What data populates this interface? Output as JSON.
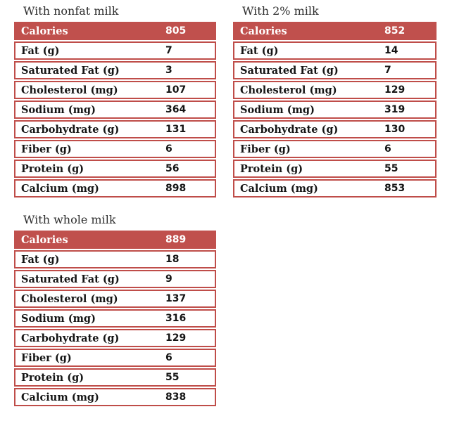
{
  "colors": {
    "accent_red": "#c0504d",
    "border_red": "#bf4d49",
    "header_text": "#ffffff",
    "body_text": "#151515",
    "title_text": "#2e2e2e",
    "background": "#ffffff"
  },
  "tables": [
    {
      "title": "With nonfat milk",
      "header": {
        "label": "Calories",
        "value": "805"
      },
      "rows": [
        {
          "label": "Fat (g)",
          "value": "7"
        },
        {
          "label": "Saturated Fat (g)",
          "value": "3"
        },
        {
          "label": "Cholesterol (mg)",
          "value": "107"
        },
        {
          "label": "Sodium (mg)",
          "value": "364"
        },
        {
          "label": "Carbohydrate (g)",
          "value": "131"
        },
        {
          "label": "Fiber (g)",
          "value": "6"
        },
        {
          "label": "Protein (g)",
          "value": "56"
        },
        {
          "label": "Calcium (mg)",
          "value": "898"
        }
      ]
    },
    {
      "title": "With 2% milk",
      "header": {
        "label": "Calories",
        "value": "852"
      },
      "rows": [
        {
          "label": "Fat (g)",
          "value": "14"
        },
        {
          "label": "Saturated Fat (g)",
          "value": "7"
        },
        {
          "label": "Cholesterol (mg)",
          "value": "129"
        },
        {
          "label": "Sodium (mg)",
          "value": "319"
        },
        {
          "label": "Carbohydrate (g)",
          "value": "130"
        },
        {
          "label": "Fiber (g)",
          "value": "6"
        },
        {
          "label": "Protein (g)",
          "value": "55"
        },
        {
          "label": "Calcium (mg)",
          "value": "853"
        }
      ]
    },
    {
      "title": "With whole milk",
      "header": {
        "label": "Calories",
        "value": "889"
      },
      "rows": [
        {
          "label": "Fat (g)",
          "value": "18"
        },
        {
          "label": "Saturated Fat (g)",
          "value": "9"
        },
        {
          "label": "Cholesterol (mg)",
          "value": "137"
        },
        {
          "label": "Sodium (mg)",
          "value": "316"
        },
        {
          "label": "Carbohydrate (g)",
          "value": "129"
        },
        {
          "label": "Fiber (g)",
          "value": "6"
        },
        {
          "label": "Protein (g)",
          "value": "55"
        },
        {
          "label": "Calcium (mg)",
          "value": "838"
        }
      ]
    }
  ]
}
